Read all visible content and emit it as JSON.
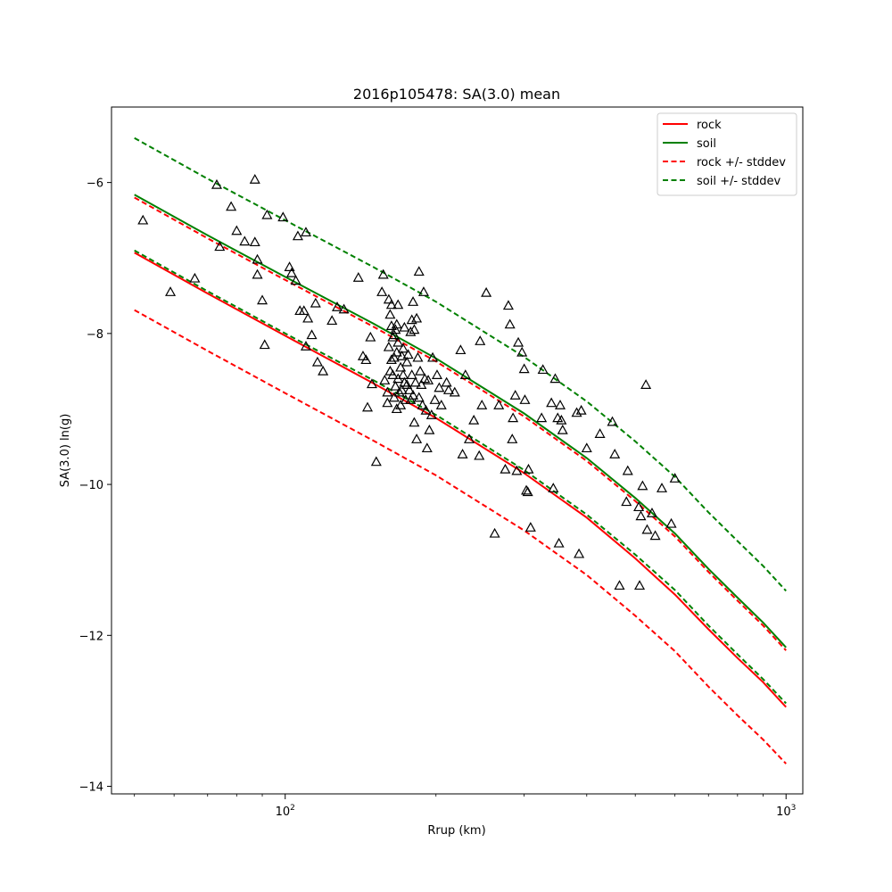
{
  "chart_data": {
    "type": "scatter",
    "title": "2016p105478: SA(3.0) mean",
    "xlabel": "Rrup (km)",
    "ylabel": "SA(3.0) ln(g)",
    "xscale": "log",
    "xlim": [
      45,
      1080
    ],
    "ylim": [
      -14.1,
      -5.0
    ],
    "grid": false,
    "legend": "top-right",
    "x_ticks": [
      {
        "value": 100,
        "base": "10",
        "exp": "2"
      },
      {
        "value": 1000,
        "base": "10",
        "exp": "3"
      }
    ],
    "x_minor_ticks": [
      50,
      60,
      70,
      80,
      90,
      200,
      300,
      400,
      500,
      600,
      700,
      800,
      900
    ],
    "y_ticks": [
      {
        "value": -14,
        "label": "−14"
      },
      {
        "value": -12,
        "label": "−12"
      },
      {
        "value": -10,
        "label": "−10"
      },
      {
        "value": -8,
        "label": "−8"
      },
      {
        "value": -6,
        "label": "−6"
      }
    ],
    "colors": {
      "rock": "#ff0000",
      "soil": "#008000",
      "points": "#000000"
    },
    "series": [
      {
        "name": "rock",
        "style": "solid",
        "color": "#ff0000",
        "x": [
          50,
          70,
          100,
          150,
          200,
          300,
          400,
          500,
          600,
          700,
          800,
          900,
          1000
        ],
        "y": [
          -6.93,
          -7.47,
          -8.03,
          -8.66,
          -9.12,
          -9.85,
          -10.44,
          -10.98,
          -11.46,
          -11.92,
          -12.3,
          -12.62,
          -12.95
        ]
      },
      {
        "name": "soil",
        "style": "solid",
        "color": "#008000",
        "x": [
          50,
          70,
          100,
          150,
          200,
          300,
          400,
          500,
          600,
          700,
          800,
          900,
          1000
        ],
        "y": [
          -6.16,
          -6.7,
          -7.25,
          -7.87,
          -8.33,
          -9.06,
          -9.65,
          -10.18,
          -10.65,
          -11.12,
          -11.5,
          -11.83,
          -12.16
        ]
      },
      {
        "name": "rock +/- stddev",
        "style": "dashed",
        "color": "#ff0000",
        "x": [
          50,
          70,
          100,
          150,
          200,
          300,
          400,
          500,
          600,
          700,
          800,
          900,
          1000
        ],
        "y": [
          -6.2,
          -6.74,
          -7.29,
          -7.91,
          -8.37,
          -9.1,
          -9.69,
          -10.22,
          -10.69,
          -11.16,
          -11.54,
          -11.87,
          -12.2
        ]
      },
      {
        "name": "",
        "style": "dashed",
        "color": "#ff0000",
        "x": [
          50,
          70,
          100,
          150,
          200,
          300,
          400,
          500,
          600,
          700,
          800,
          900,
          1000
        ],
        "y": [
          -7.69,
          -8.23,
          -8.79,
          -9.42,
          -9.88,
          -10.61,
          -11.2,
          -11.74,
          -12.21,
          -12.68,
          -13.06,
          -13.38,
          -13.7
        ]
      },
      {
        "name": "soil +/- stddev",
        "style": "dashed",
        "color": "#008000",
        "x": [
          50,
          70,
          100,
          150,
          200,
          300,
          400,
          500,
          600,
          700,
          800,
          900,
          1000
        ],
        "y": [
          -5.41,
          -5.95,
          -6.5,
          -7.12,
          -7.58,
          -8.31,
          -8.9,
          -9.43,
          -9.9,
          -10.37,
          -10.75,
          -11.08,
          -11.41
        ]
      },
      {
        "name": "",
        "style": "dashed",
        "color": "#008000",
        "x": [
          50,
          70,
          100,
          150,
          200,
          300,
          400,
          500,
          600,
          700,
          800,
          900,
          1000
        ],
        "y": [
          -6.9,
          -7.44,
          -8.0,
          -8.62,
          -9.08,
          -9.81,
          -10.4,
          -10.93,
          -11.4,
          -11.87,
          -12.25,
          -12.58,
          -12.9
        ]
      }
    ],
    "points": [
      [
        52,
        -6.5
      ],
      [
        59,
        -7.45
      ],
      [
        66,
        -7.27
      ],
      [
        73,
        -6.03
      ],
      [
        74,
        -6.85
      ],
      [
        78,
        -6.32
      ],
      [
        80,
        -6.64
      ],
      [
        83,
        -6.78
      ],
      [
        87,
        -5.96
      ],
      [
        87,
        -6.79
      ],
      [
        88,
        -7.02
      ],
      [
        88,
        -7.22
      ],
      [
        90,
        -7.56
      ],
      [
        91,
        -8.15
      ],
      [
        92,
        -6.43
      ],
      [
        99,
        -6.46
      ],
      [
        102,
        -7.12
      ],
      [
        103,
        -7.2
      ],
      [
        105,
        -7.3
      ],
      [
        106,
        -6.71
      ],
      [
        107,
        -7.7
      ],
      [
        109,
        -7.7
      ],
      [
        110,
        -6.66
      ],
      [
        110,
        -8.17
      ],
      [
        111,
        -7.8
      ],
      [
        113,
        -8.02
      ],
      [
        115,
        -7.6
      ],
      [
        116,
        -8.38
      ],
      [
        119,
        -8.5
      ],
      [
        124,
        -7.83
      ],
      [
        127,
        -7.65
      ],
      [
        131,
        -7.68
      ],
      [
        140,
        -7.26
      ],
      [
        143,
        -8.3
      ],
      [
        145,
        -8.35
      ],
      [
        146,
        -8.98
      ],
      [
        148,
        -8.05
      ],
      [
        149,
        -8.67
      ],
      [
        152,
        -9.7
      ],
      [
        156,
        -7.45
      ],
      [
        157,
        -7.22
      ],
      [
        158,
        -8.62
      ],
      [
        160,
        -8.78
      ],
      [
        160,
        -8.92
      ],
      [
        161,
        -7.55
      ],
      [
        161,
        -8.18
      ],
      [
        162,
        -7.75
      ],
      [
        162,
        -8.5
      ],
      [
        163,
        -7.62
      ],
      [
        163,
        -7.9
      ],
      [
        163,
        -8.35
      ],
      [
        164,
        -8.05
      ],
      [
        164,
        -8.55
      ],
      [
        165,
        -8.02
      ],
      [
        165,
        -8.32
      ],
      [
        165,
        -8.85
      ],
      [
        166,
        -7.95
      ],
      [
        166,
        -8.7
      ],
      [
        167,
        -7.88
      ],
      [
        167,
        -8.25
      ],
      [
        167,
        -9.0
      ],
      [
        168,
        -7.62
      ],
      [
        168,
        -8.12
      ],
      [
        168,
        -8.6
      ],
      [
        169,
        -8.78
      ],
      [
        170,
        -8.45
      ],
      [
        170,
        -8.95
      ],
      [
        171,
        -8.3
      ],
      [
        171,
        -8.75
      ],
      [
        172,
        -8.2
      ],
      [
        172,
        -8.55
      ],
      [
        173,
        -7.92
      ],
      [
        173,
        -8.65
      ],
      [
        174,
        -8.88
      ],
      [
        175,
        -8.38
      ],
      [
        175,
        -8.68
      ],
      [
        176,
        -8.28
      ],
      [
        177,
        -8.75
      ],
      [
        178,
        -7.98
      ],
      [
        178,
        -8.88
      ],
      [
        179,
        -7.82
      ],
      [
        179,
        -8.55
      ],
      [
        180,
        -7.58
      ],
      [
        180,
        -8.82
      ],
      [
        181,
        -7.95
      ],
      [
        181,
        -9.18
      ],
      [
        182,
        -8.65
      ],
      [
        183,
        -7.8
      ],
      [
        183,
        -9.4
      ],
      [
        184,
        -8.32
      ],
      [
        185,
        -7.18
      ],
      [
        185,
        -8.85
      ],
      [
        186,
        -8.5
      ],
      [
        187,
        -8.68
      ],
      [
        188,
        -8.95
      ],
      [
        189,
        -7.45
      ],
      [
        190,
        -8.6
      ],
      [
        191,
        -9.02
      ],
      [
        192,
        -9.52
      ],
      [
        193,
        -8.62
      ],
      [
        194,
        -9.28
      ],
      [
        196,
        -9.08
      ],
      [
        197,
        -8.32
      ],
      [
        199,
        -8.88
      ],
      [
        201,
        -8.55
      ],
      [
        203,
        -8.72
      ],
      [
        205,
        -8.95
      ],
      [
        210,
        -8.65
      ],
      [
        212,
        -8.75
      ],
      [
        218,
        -8.78
      ],
      [
        224,
        -8.22
      ],
      [
        226,
        -9.6
      ],
      [
        229,
        -8.55
      ],
      [
        233,
        -9.4
      ],
      [
        238,
        -9.15
      ],
      [
        244,
        -9.62
      ],
      [
        245,
        -8.1
      ],
      [
        247,
        -8.95
      ],
      [
        252,
        -7.46
      ],
      [
        262,
        -10.65
      ],
      [
        267,
        -8.95
      ],
      [
        275,
        -9.8
      ],
      [
        279,
        -7.63
      ],
      [
        281,
        -7.88
      ],
      [
        284,
        -9.4
      ],
      [
        285,
        -9.12
      ],
      [
        288,
        -8.82
      ],
      [
        290,
        -9.82
      ],
      [
        292,
        -8.12
      ],
      [
        297,
        -8.25
      ],
      [
        300,
        -8.47
      ],
      [
        301,
        -8.88
      ],
      [
        303,
        -10.08
      ],
      [
        305,
        -10.1
      ],
      [
        306,
        -9.8
      ],
      [
        309,
        -10.57
      ],
      [
        325,
        -9.12
      ],
      [
        327,
        -8.48
      ],
      [
        340,
        -8.92
      ],
      [
        343,
        -10.05
      ],
      [
        346,
        -8.6
      ],
      [
        350,
        -9.12
      ],
      [
        352,
        -10.78
      ],
      [
        354,
        -8.95
      ],
      [
        356,
        -9.15
      ],
      [
        358,
        -9.28
      ],
      [
        382,
        -9.05
      ],
      [
        386,
        -10.92
      ],
      [
        390,
        -9.02
      ],
      [
        400,
        -9.52
      ],
      [
        425,
        -9.33
      ],
      [
        450,
        -9.17
      ],
      [
        455,
        -9.6
      ],
      [
        465,
        -11.34
      ],
      [
        480,
        -10.23
      ],
      [
        483,
        -9.82
      ],
      [
        508,
        -10.3
      ],
      [
        510,
        -11.34
      ],
      [
        513,
        -10.42
      ],
      [
        517,
        -10.02
      ],
      [
        525,
        -8.68
      ],
      [
        528,
        -10.6
      ],
      [
        540,
        -10.38
      ],
      [
        548,
        -10.68
      ],
      [
        565,
        -10.05
      ],
      [
        590,
        -10.52
      ],
      [
        600,
        -9.92
      ]
    ]
  }
}
